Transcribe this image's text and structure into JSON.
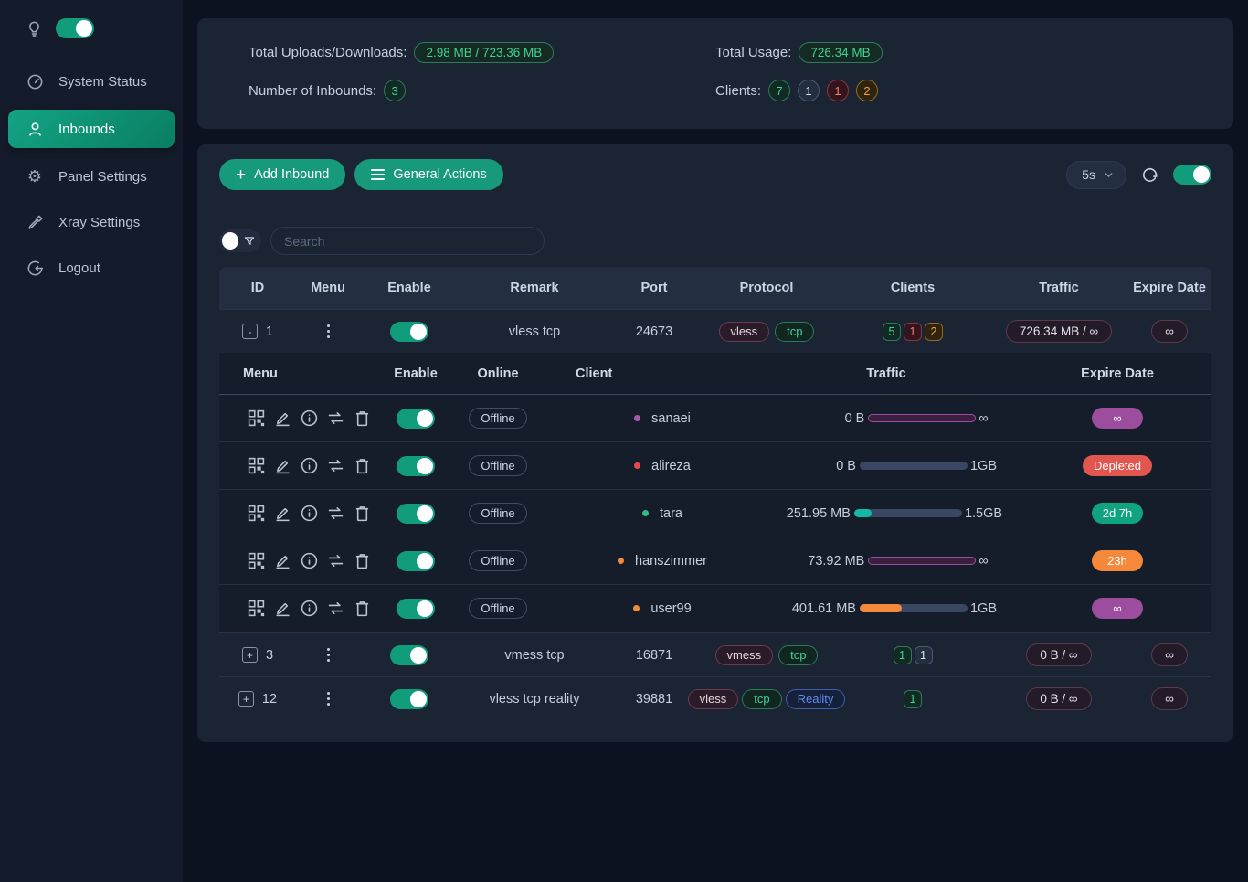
{
  "colors": {
    "accent": "#119c7c",
    "purple": "#9c4d9e",
    "red": "#e25650",
    "orange": "#f6883c",
    "teal": "#14b8a6"
  },
  "sidebar": {
    "theme_toggle_on": true,
    "items": [
      {
        "label": "System Status",
        "active": false
      },
      {
        "label": "Inbounds",
        "active": true
      },
      {
        "label": "Panel Settings",
        "active": false
      },
      {
        "label": "Xray Settings",
        "active": false
      },
      {
        "label": "Logout",
        "active": false
      }
    ]
  },
  "stats": {
    "total_uploads_downloads_label": "Total Uploads/Downloads:",
    "total_uploads_downloads_value": "2.98 MB / 723.36 MB",
    "number_of_inbounds_label": "Number of Inbounds:",
    "number_of_inbounds_value": "3",
    "total_usage_label": "Total Usage:",
    "total_usage_value": "726.34 MB",
    "clients_label": "Clients:",
    "client_counts": [
      {
        "value": "7",
        "color": "green"
      },
      {
        "value": "1",
        "color": "gray"
      },
      {
        "value": "1",
        "color": "red"
      },
      {
        "value": "2",
        "color": "orange"
      }
    ]
  },
  "toolbar": {
    "add_inbound_label": "Add Inbound",
    "general_actions_label": "General Actions",
    "refresh_interval": "5s",
    "auto_refresh_on": true
  },
  "search": {
    "placeholder": "Search",
    "filter_toggle_on": false
  },
  "table": {
    "headers": [
      "ID",
      "Menu",
      "Enable",
      "Remark",
      "Port",
      "Protocol",
      "Clients",
      "Traffic",
      "Expire Date"
    ],
    "sub_headers": [
      "Menu",
      "Enable",
      "Online",
      "Client",
      "Traffic",
      "Expire Date"
    ]
  },
  "inbounds": [
    {
      "id": "1",
      "expand_symbol": "-",
      "enabled": true,
      "remark": "vless tcp",
      "port": "24673",
      "protocols": [
        {
          "label": "vless",
          "style": "pink"
        },
        {
          "label": "tcp",
          "style": "green"
        }
      ],
      "clients": [
        {
          "value": "5",
          "color": "green"
        },
        {
          "value": "1",
          "color": "red"
        },
        {
          "value": "2",
          "color": "orange"
        }
      ],
      "traffic": "726.34 MB / ∞",
      "expire": "∞"
    },
    {
      "id": "3",
      "expand_symbol": "+",
      "enabled": true,
      "remark": "vmess tcp",
      "port": "16871",
      "protocols": [
        {
          "label": "vmess",
          "style": "pink"
        },
        {
          "label": "tcp",
          "style": "green"
        }
      ],
      "clients": [
        {
          "value": "1",
          "color": "green"
        },
        {
          "value": "1",
          "color": "gray"
        }
      ],
      "traffic": "0 B / ∞",
      "expire": "∞"
    },
    {
      "id": "12",
      "expand_symbol": "+",
      "enabled": true,
      "remark": "vless tcp reality",
      "port": "39881",
      "protocols": [
        {
          "label": "vless",
          "style": "pink"
        },
        {
          "label": "tcp",
          "style": "green"
        },
        {
          "label": "Reality",
          "style": "blue"
        }
      ],
      "clients": [
        {
          "value": "1",
          "color": "green"
        }
      ],
      "traffic": "0 B / ∞",
      "expire": "∞"
    }
  ],
  "clients": [
    {
      "name": "sanaei",
      "dot": "#a85ab0",
      "enabled": true,
      "online": "Offline",
      "used": "0 B",
      "limit": "∞",
      "bar": {
        "type": "infinite"
      },
      "expire": {
        "label": "∞",
        "color": "purple"
      }
    },
    {
      "name": "alireza",
      "dot": "#e5484d",
      "enabled": true,
      "online": "Offline",
      "used": "0 B",
      "limit": "1GB",
      "bar": {
        "type": "limited",
        "pct": 0,
        "color": "none"
      },
      "expire": {
        "label": "Depleted",
        "color": "red"
      }
    },
    {
      "name": "tara",
      "dot": "#2dbd85",
      "enabled": true,
      "online": "Offline",
      "used": "251.95 MB",
      "limit": "1.5GB",
      "bar": {
        "type": "limited",
        "pct": 16,
        "color": "teal"
      },
      "expire": {
        "label": "2d 7h",
        "color": "green"
      }
    },
    {
      "name": "hanszimmer",
      "dot": "#f08c3a",
      "enabled": true,
      "online": "Offline",
      "used": "73.92 MB",
      "limit": "∞",
      "bar": {
        "type": "infinite"
      },
      "expire": {
        "label": "23h",
        "color": "orange"
      }
    },
    {
      "name": "user99",
      "dot": "#f08c3a",
      "enabled": true,
      "online": "Offline",
      "used": "401.61 MB",
      "limit": "1GB",
      "bar": {
        "type": "limited",
        "pct": 39,
        "color": "orange"
      },
      "expire": {
        "label": "∞",
        "color": "purple"
      }
    }
  ]
}
